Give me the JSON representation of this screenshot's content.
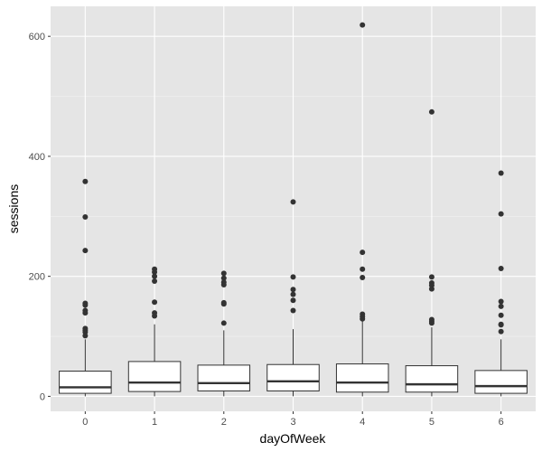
{
  "chart_data": {
    "type": "boxplot",
    "xlabel": "dayOfWeek",
    "ylabel": "sessions",
    "categories": [
      "0",
      "1",
      "2",
      "3",
      "4",
      "5",
      "6"
    ],
    "ylim": [
      -25,
      650
    ],
    "yticks": [
      0,
      200,
      400,
      600
    ],
    "grid": true,
    "colors": {
      "panel": "#e5e5e5",
      "grid_major": "#ffffff",
      "grid_minor": "#f2f2f2",
      "box_fill": "#ffffff",
      "box_line": "#333333",
      "outlier": "#333333"
    },
    "boxes": [
      {
        "x": "0",
        "q1": 5,
        "median": 15,
        "q3": 42,
        "whisker_low": 0,
        "whisker_high": 95,
        "outliers": [
          358,
          299,
          243,
          155,
          152,
          143,
          139,
          113,
          110,
          107,
          101
        ]
      },
      {
        "x": "1",
        "q1": 8,
        "median": 23,
        "q3": 58,
        "whisker_low": 0,
        "whisker_high": 120,
        "outliers": [
          212,
          207,
          200,
          192,
          157,
          139,
          134
        ]
      },
      {
        "x": "2",
        "q1": 9,
        "median": 22,
        "q3": 52,
        "whisker_low": 0,
        "whisker_high": 110,
        "outliers": [
          205,
          197,
          190,
          186,
          156,
          154,
          122
        ]
      },
      {
        "x": "3",
        "q1": 9,
        "median": 25,
        "q3": 53,
        "whisker_low": 0,
        "whisker_high": 112,
        "outliers": [
          324,
          199,
          178,
          170,
          160,
          143
        ]
      },
      {
        "x": "4",
        "q1": 7,
        "median": 23,
        "q3": 54,
        "whisker_low": 0,
        "whisker_high": 127,
        "outliers": [
          619,
          240,
          212,
          198,
          137,
          133,
          129
        ]
      },
      {
        "x": "5",
        "q1": 7,
        "median": 20,
        "q3": 51,
        "whisker_low": 0,
        "whisker_high": 115,
        "outliers": [
          474,
          199,
          189,
          185,
          179,
          128,
          125,
          122
        ]
      },
      {
        "x": "6",
        "q1": 5,
        "median": 17,
        "q3": 43,
        "whisker_low": 0,
        "whisker_high": 95,
        "outliers": [
          372,
          304,
          213,
          158,
          150,
          135,
          120,
          119,
          108
        ]
      }
    ]
  }
}
